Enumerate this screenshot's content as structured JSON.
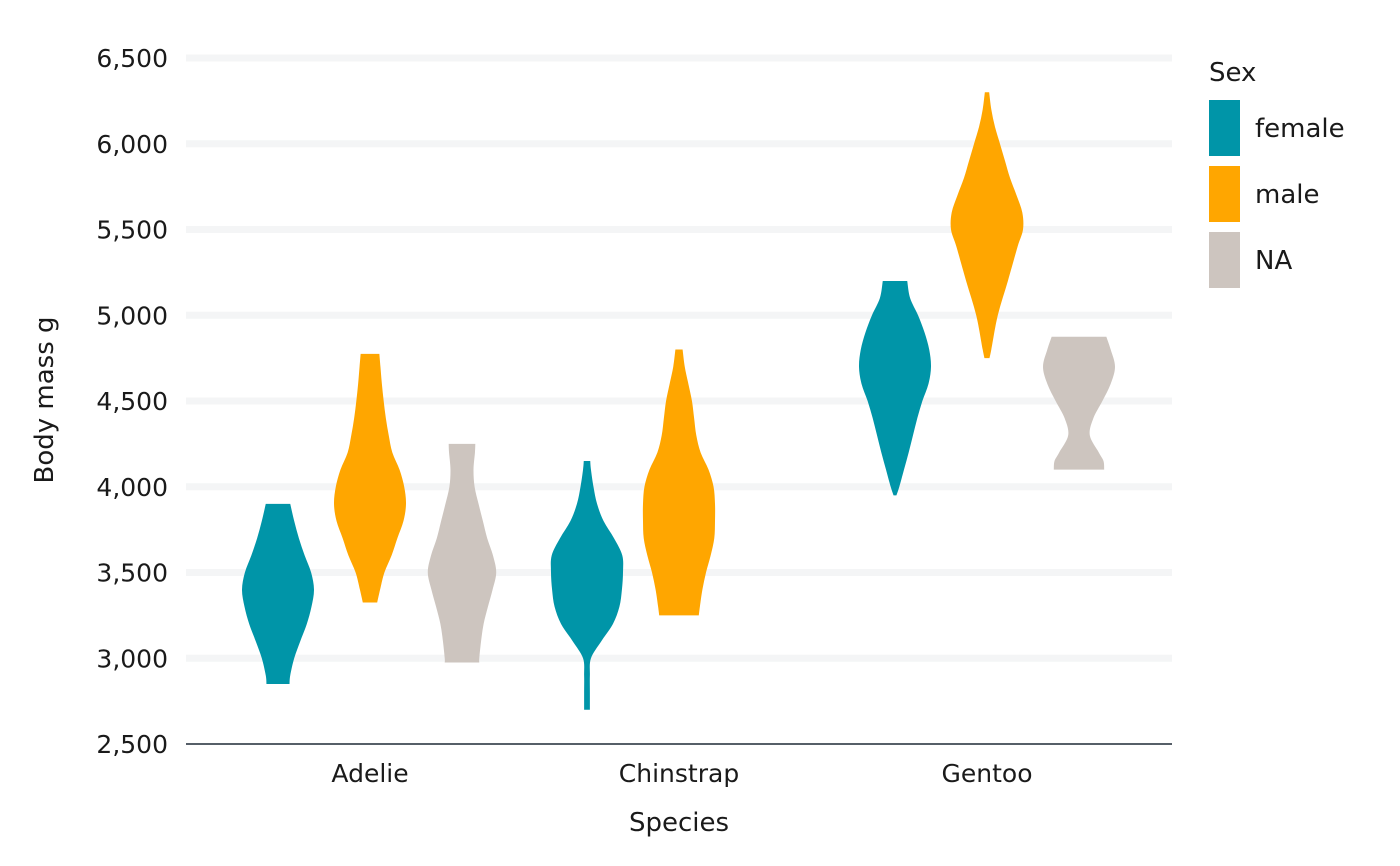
{
  "chart_data": {
    "type": "violin",
    "xlabel": "Species",
    "ylabel": "Body mass g",
    "ylim": [
      2500,
      6500
    ],
    "yticks": [
      2500,
      3000,
      3500,
      4000,
      4500,
      5000,
      5500,
      6000,
      6500
    ],
    "ytick_labels": [
      "2,500",
      "3,000",
      "3,500",
      "4,000",
      "4,500",
      "5,000",
      "5,500",
      "6,000",
      "6,500"
    ],
    "categories": [
      "Adelie",
      "Chinstrap",
      "Gentoo"
    ],
    "grid": true,
    "legend": {
      "title": "Sex",
      "placement": "right",
      "entries": [
        {
          "label": "female",
          "color": "#0095a8"
        },
        {
          "label": "male",
          "color": "#ffa600"
        },
        {
          "label": "NA",
          "color": "#cdc5bf"
        }
      ]
    },
    "series": [
      {
        "name": "female",
        "color": "#0095a8",
        "violins": [
          {
            "category": "Adelie",
            "profile": [
              [
                2850,
                0.32
              ],
              [
                2900,
                0.34
              ],
              [
                3000,
                0.45
              ],
              [
                3100,
                0.62
              ],
              [
                3200,
                0.8
              ],
              [
                3300,
                0.93
              ],
              [
                3400,
                1.0
              ],
              [
                3500,
                0.92
              ],
              [
                3600,
                0.74
              ],
              [
                3700,
                0.58
              ],
              [
                3800,
                0.45
              ],
              [
                3900,
                0.34
              ]
            ]
          },
          {
            "category": "Chinstrap",
            "profile": [
              [
                2700,
                0.08
              ],
              [
                2800,
                0.08
              ],
              [
                2900,
                0.08
              ],
              [
                3000,
                0.11
              ],
              [
                3100,
                0.4
              ],
              [
                3200,
                0.72
              ],
              [
                3300,
                0.9
              ],
              [
                3400,
                0.97
              ],
              [
                3500,
                1.0
              ],
              [
                3600,
                0.98
              ],
              [
                3700,
                0.75
              ],
              [
                3800,
                0.46
              ],
              [
                3900,
                0.28
              ],
              [
                4000,
                0.18
              ],
              [
                4100,
                0.11
              ],
              [
                4150,
                0.09
              ]
            ]
          },
          {
            "category": "Gentoo",
            "profile": [
              [
                3950,
                0.04
              ],
              [
                4000,
                0.12
              ],
              [
                4100,
                0.25
              ],
              [
                4200,
                0.38
              ],
              [
                4300,
                0.5
              ],
              [
                4400,
                0.62
              ],
              [
                4500,
                0.76
              ],
              [
                4600,
                0.93
              ],
              [
                4700,
                1.0
              ],
              [
                4800,
                0.95
              ],
              [
                4900,
                0.82
              ],
              [
                5000,
                0.64
              ],
              [
                5100,
                0.42
              ],
              [
                5200,
                0.34
              ]
            ]
          }
        ]
      },
      {
        "name": "male",
        "color": "#ffa600",
        "violins": [
          {
            "category": "Adelie",
            "profile": [
              [
                3325,
                0.2
              ],
              [
                3400,
                0.28
              ],
              [
                3500,
                0.4
              ],
              [
                3600,
                0.6
              ],
              [
                3700,
                0.76
              ],
              [
                3800,
                0.93
              ],
              [
                3900,
                1.0
              ],
              [
                4000,
                0.95
              ],
              [
                4100,
                0.82
              ],
              [
                4200,
                0.62
              ],
              [
                4300,
                0.52
              ],
              [
                4400,
                0.44
              ],
              [
                4500,
                0.38
              ],
              [
                4600,
                0.33
              ],
              [
                4700,
                0.29
              ],
              [
                4775,
                0.26
              ]
            ]
          },
          {
            "category": "Chinstrap",
            "profile": [
              [
                3250,
                0.55
              ],
              [
                3300,
                0.58
              ],
              [
                3400,
                0.65
              ],
              [
                3500,
                0.75
              ],
              [
                3600,
                0.88
              ],
              [
                3700,
                0.98
              ],
              [
                3800,
                1.0
              ],
              [
                3900,
                1.0
              ],
              [
                4000,
                0.96
              ],
              [
                4100,
                0.82
              ],
              [
                4200,
                0.6
              ],
              [
                4300,
                0.48
              ],
              [
                4400,
                0.42
              ],
              [
                4500,
                0.36
              ],
              [
                4600,
                0.26
              ],
              [
                4700,
                0.16
              ],
              [
                4800,
                0.1
              ]
            ]
          },
          {
            "category": "Gentoo",
            "profile": [
              [
                4750,
                0.07
              ],
              [
                4800,
                0.12
              ],
              [
                5000,
                0.3
              ],
              [
                5200,
                0.58
              ],
              [
                5400,
                0.85
              ],
              [
                5500,
                1.0
              ],
              [
                5600,
                0.98
              ],
              [
                5700,
                0.82
              ],
              [
                5800,
                0.64
              ],
              [
                5900,
                0.5
              ],
              [
                6000,
                0.36
              ],
              [
                6100,
                0.22
              ],
              [
                6200,
                0.12
              ],
              [
                6300,
                0.06
              ]
            ]
          }
        ]
      },
      {
        "name": "NA",
        "color": "#cdc5bf",
        "violins": [
          {
            "category": "Adelie",
            "profile": [
              [
                2975,
                0.48
              ],
              [
                3000,
                0.48
              ],
              [
                3100,
                0.53
              ],
              [
                3200,
                0.6
              ],
              [
                3300,
                0.72
              ],
              [
                3400,
                0.85
              ],
              [
                3500,
                0.95
              ],
              [
                3600,
                0.86
              ],
              [
                3700,
                0.7
              ],
              [
                3800,
                0.58
              ],
              [
                3900,
                0.46
              ],
              [
                4000,
                0.35
              ],
              [
                4100,
                0.32
              ],
              [
                4200,
                0.36
              ],
              [
                4250,
                0.37
              ]
            ]
          },
          {
            "category": "Gentoo",
            "profile": [
              [
                4100,
                0.7
              ],
              [
                4150,
                0.68
              ],
              [
                4200,
                0.55
              ],
              [
                4300,
                0.3
              ],
              [
                4400,
                0.4
              ],
              [
                4500,
                0.65
              ],
              [
                4600,
                0.88
              ],
              [
                4700,
                1.0
              ],
              [
                4800,
                0.88
              ],
              [
                4875,
                0.76
              ]
            ]
          }
        ]
      }
    ]
  }
}
